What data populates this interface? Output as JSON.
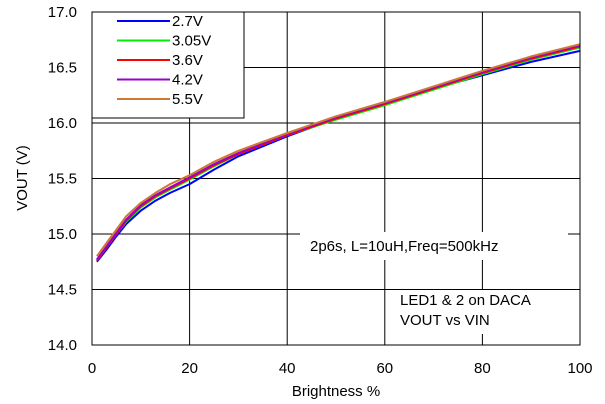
{
  "chart_data": {
    "type": "line",
    "xlabel": "Brightness %",
    "ylabel": "VOUT (V)",
    "xlim": [
      0,
      100
    ],
    "ylim": [
      14.0,
      17.0
    ],
    "x_ticks": [
      0,
      20,
      40,
      60,
      80,
      100
    ],
    "y_ticks": [
      14.0,
      14.5,
      15.0,
      15.5,
      16.0,
      16.5,
      17.0
    ],
    "x_tick_labels": [
      "0",
      "20",
      "40",
      "60",
      "80",
      "100"
    ],
    "y_tick_labels": [
      "14.0",
      "14.5",
      "15.0",
      "15.5",
      "16.0",
      "16.5",
      "17.0"
    ],
    "grid": true,
    "legend_position": "top-left",
    "x": [
      1,
      3,
      5,
      7,
      10,
      13,
      16,
      20,
      25,
      30,
      40,
      50,
      60,
      70,
      80,
      90,
      100
    ],
    "series": [
      {
        "name": "2.7V",
        "color": "#0000ff",
        "values": [
          14.75,
          14.86,
          14.98,
          15.09,
          15.21,
          15.3,
          15.37,
          15.45,
          15.58,
          15.7,
          15.88,
          16.04,
          16.18,
          16.31,
          16.43,
          16.55,
          16.65
        ]
      },
      {
        "name": "3.05V",
        "color": "#00ee00",
        "values": [
          14.76,
          14.88,
          15.0,
          15.11,
          15.24,
          15.33,
          15.4,
          15.49,
          15.61,
          15.72,
          15.89,
          16.03,
          16.16,
          16.3,
          16.44,
          16.57,
          16.68
        ]
      },
      {
        "name": "3.6V",
        "color": "#ff0000",
        "values": [
          14.76,
          14.88,
          15.0,
          15.12,
          15.25,
          15.34,
          15.41,
          15.5,
          15.62,
          15.72,
          15.89,
          16.04,
          16.17,
          16.31,
          16.45,
          16.58,
          16.69
        ]
      },
      {
        "name": "4.2V",
        "color": "#9900cc",
        "values": [
          14.77,
          14.89,
          15.01,
          15.13,
          15.26,
          15.35,
          15.42,
          15.51,
          15.63,
          15.73,
          15.9,
          16.05,
          16.18,
          16.32,
          16.46,
          16.59,
          16.7
        ]
      },
      {
        "name": "5.5V",
        "color": "#cc7a33",
        "values": [
          14.8,
          14.92,
          15.04,
          15.16,
          15.28,
          15.37,
          15.45,
          15.53,
          15.65,
          15.75,
          15.91,
          16.06,
          16.19,
          16.33,
          16.47,
          16.6,
          16.71
        ]
      }
    ],
    "annotations": [
      "2p6s, L=10uH,Freq=500kHz",
      "LED1 & 2 on DACA",
      "VOUT vs VIN"
    ]
  }
}
